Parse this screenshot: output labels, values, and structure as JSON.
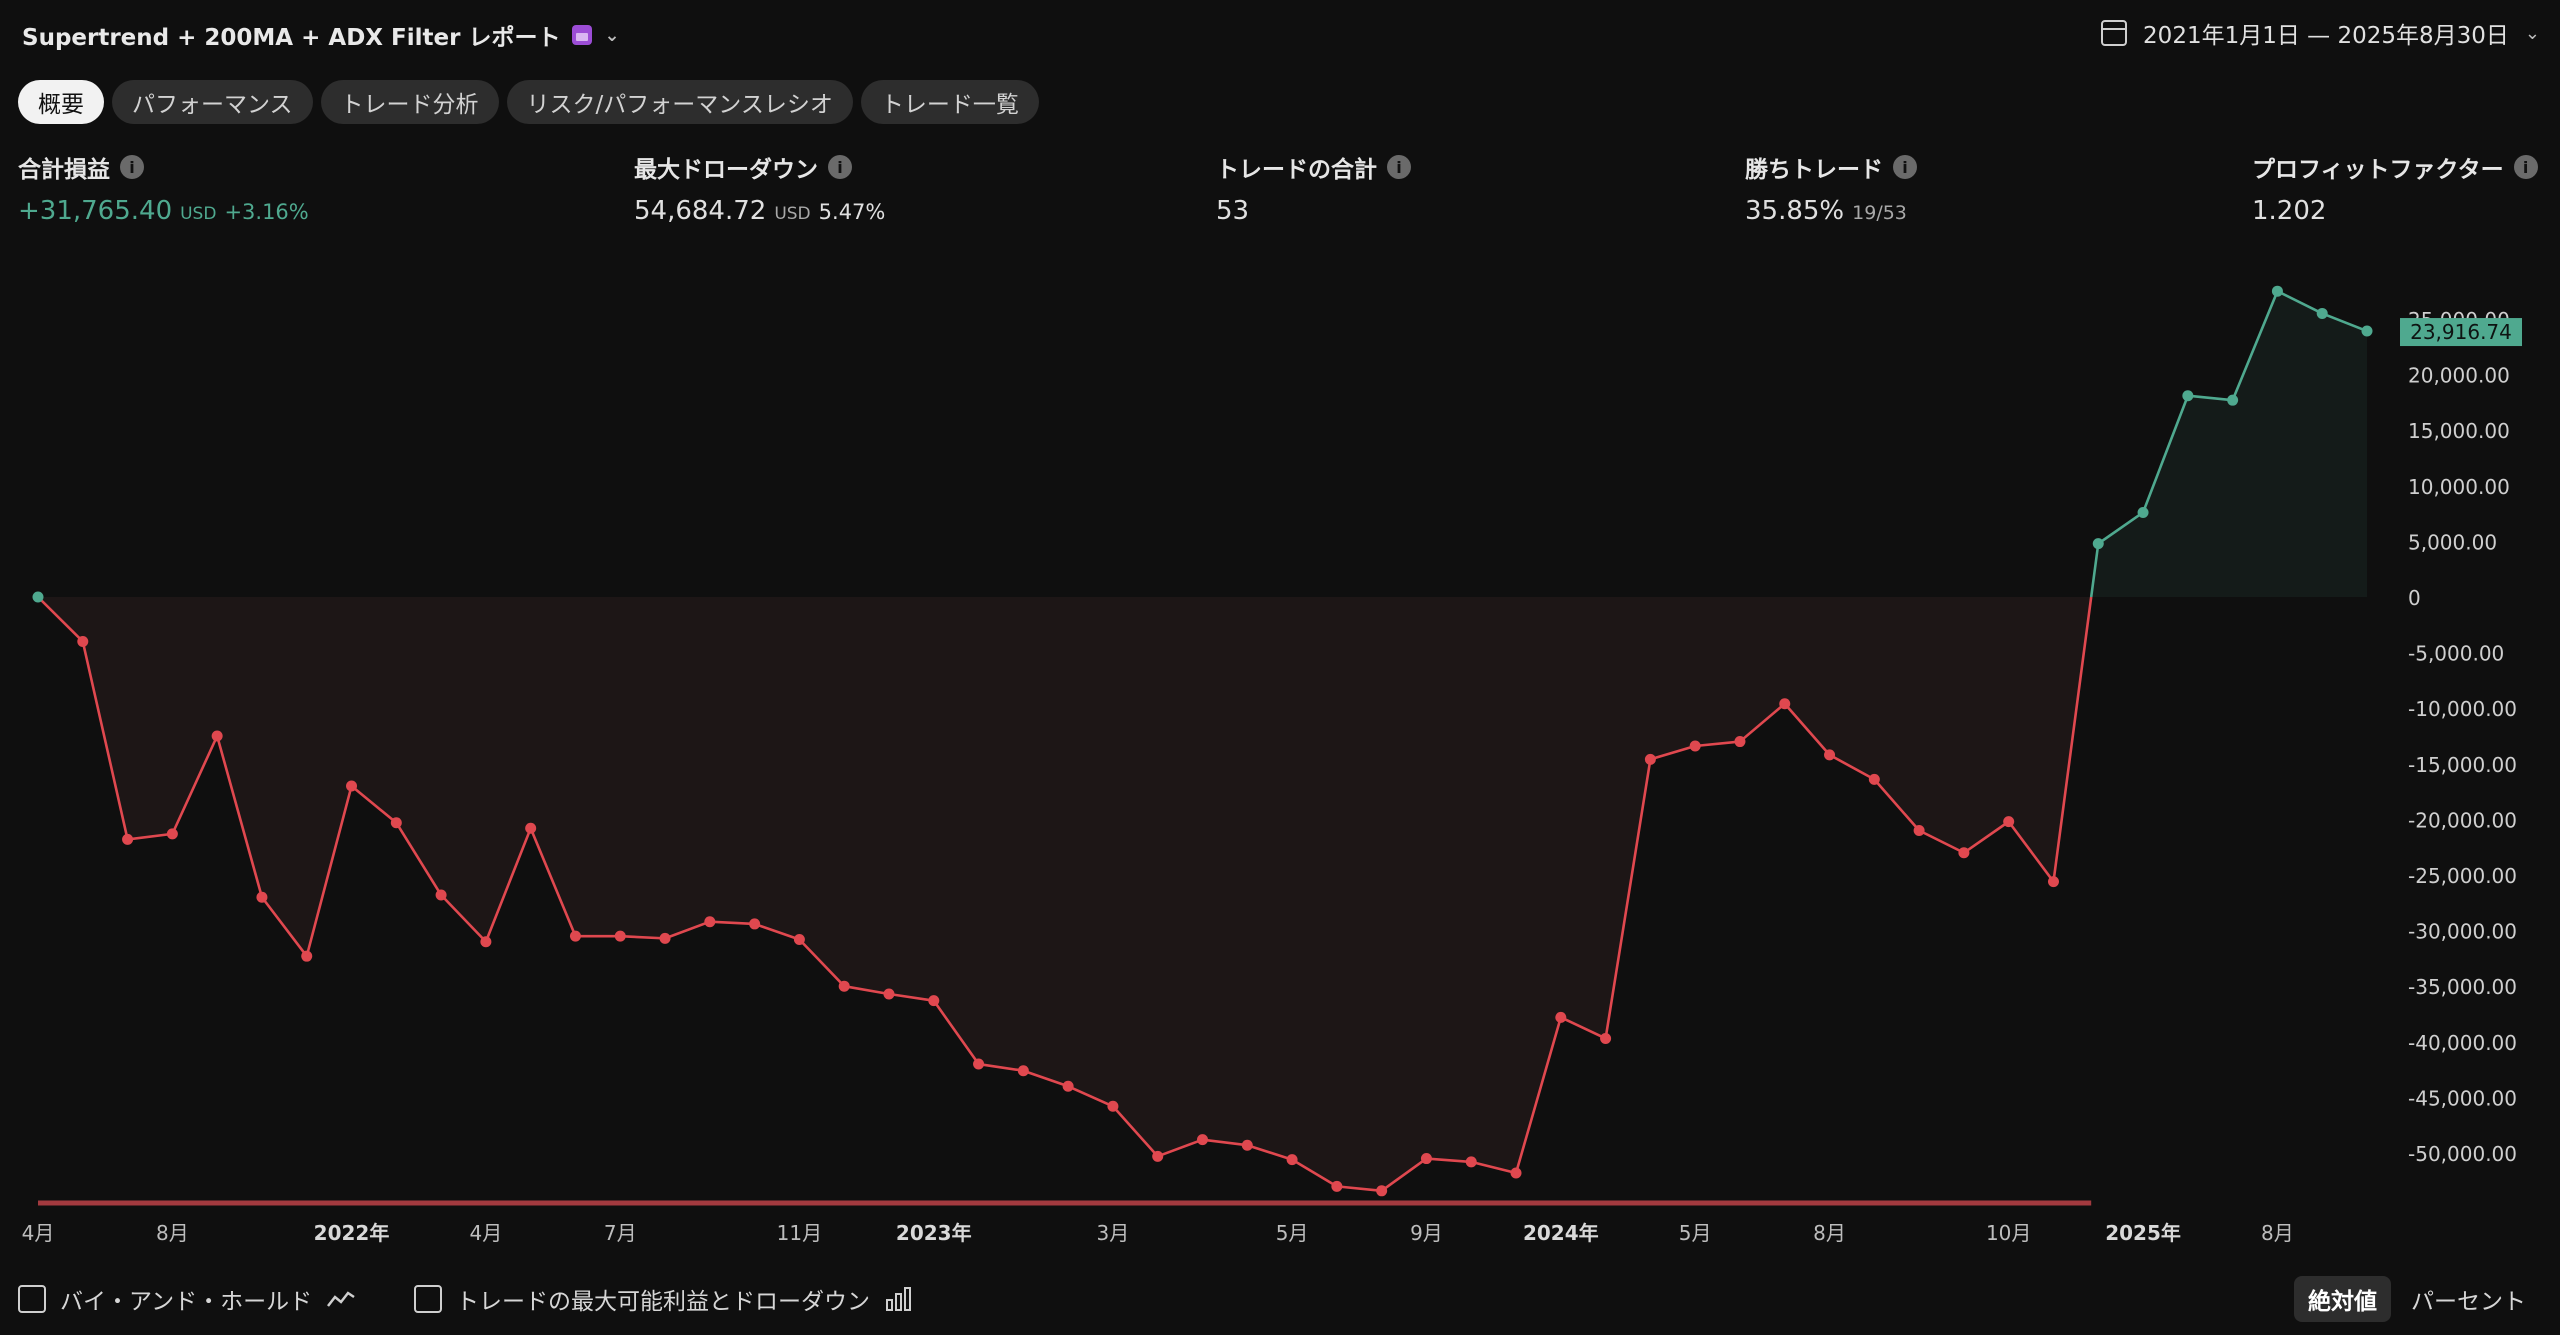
{
  "header": {
    "title": "Supertrend + 200MA + ADX Filter レポート",
    "date_range": "2021年1月1日 — 2025年8月30日"
  },
  "tabs": [
    {
      "label": "概要",
      "active": true
    },
    {
      "label": "パフォーマンス"
    },
    {
      "label": "トレード分析"
    },
    {
      "label": "リスク/パフォーマンスレシオ"
    },
    {
      "label": "トレード一覧"
    }
  ],
  "metrics": {
    "total_pnl": {
      "label": "合計損益",
      "value": "+31,765.40",
      "unit": "USD",
      "pct": "+3.16%"
    },
    "max_drawdown": {
      "label": "最大ドローダウン",
      "value": "54,684.72",
      "unit": "USD",
      "pct": "5.47%"
    },
    "total_trades": {
      "label": "トレードの合計",
      "value": "53"
    },
    "win_trades": {
      "label": "勝ちトレード",
      "value": "35.85%",
      "ratio": "19/53"
    },
    "profit_factor": {
      "label": "プロフィットファクター",
      "value": "1.202"
    }
  },
  "chart_data": {
    "type": "line",
    "y_ticks": [
      -50000,
      -45000,
      -40000,
      -35000,
      -30000,
      -25000,
      -20000,
      -15000,
      -10000,
      -5000,
      0,
      5000,
      10000,
      15000,
      20000,
      25000
    ],
    "y_tick_labels": [
      "-50,000.00",
      "-45,000.00",
      "-40,000.00",
      "-35,000.00",
      "-30,000.00",
      "-25,000.00",
      "-20,000.00",
      "-15,000.00",
      "-10,000.00",
      "-5,000.00",
      "0",
      "5,000.00",
      "10,000.00",
      "15,000.00",
      "20,000.00",
      "25,000.00"
    ],
    "ylim": [
      -54500,
      28000
    ],
    "x_labels": [
      {
        "label": "4月",
        "idx": 0
      },
      {
        "label": "8月",
        "idx": 3
      },
      {
        "label": "2022年",
        "idx": 7,
        "bold": true
      },
      {
        "label": "4月",
        "idx": 10
      },
      {
        "label": "7月",
        "idx": 13
      },
      {
        "label": "11月",
        "idx": 17
      },
      {
        "label": "2023年",
        "idx": 20,
        "bold": true
      },
      {
        "label": "3月",
        "idx": 24
      },
      {
        "label": "5月",
        "idx": 28
      },
      {
        "label": "9月",
        "idx": 31
      },
      {
        "label": "2024年",
        "idx": 34,
        "bold": true
      },
      {
        "label": "5月",
        "idx": 37
      },
      {
        "label": "8月",
        "idx": 40
      },
      {
        "label": "10月",
        "idx": 44
      },
      {
        "label": "2025年",
        "idx": 47,
        "bold": true
      },
      {
        "label": "8月",
        "idx": 50
      }
    ],
    "values": [
      0,
      -4000,
      -21800,
      -21300,
      -12500,
      -27000,
      -32300,
      -17000,
      -20300,
      -26800,
      -31000,
      -20800,
      -30500,
      -30500,
      -30700,
      -29200,
      -29400,
      -30800,
      -35000,
      -35700,
      -36300,
      -42000,
      -42600,
      -44000,
      -45800,
      -50300,
      -48800,
      -49300,
      -50600,
      -53000,
      -53400,
      -50500,
      -50800,
      -51800,
      -37800,
      -39700,
      -14600,
      -13400,
      -13000,
      -9600,
      -14200,
      -16400,
      -21000,
      -23000,
      -20200,
      -25600,
      4800,
      7600,
      18100,
      17700,
      27500,
      25500,
      23916.74
    ],
    "last_value_label": "23,916.74",
    "colors": {
      "positive": "#4fa98f",
      "negative": "#e0484f",
      "drawdown_bar": "#a33a3f"
    }
  },
  "footer": {
    "buy_hold_label": "バイ・アンド・ホールド",
    "max_profit_label": "トレードの最大可能利益とドローダウン",
    "absolute_label": "絶対値",
    "percent_label": "パーセント"
  }
}
